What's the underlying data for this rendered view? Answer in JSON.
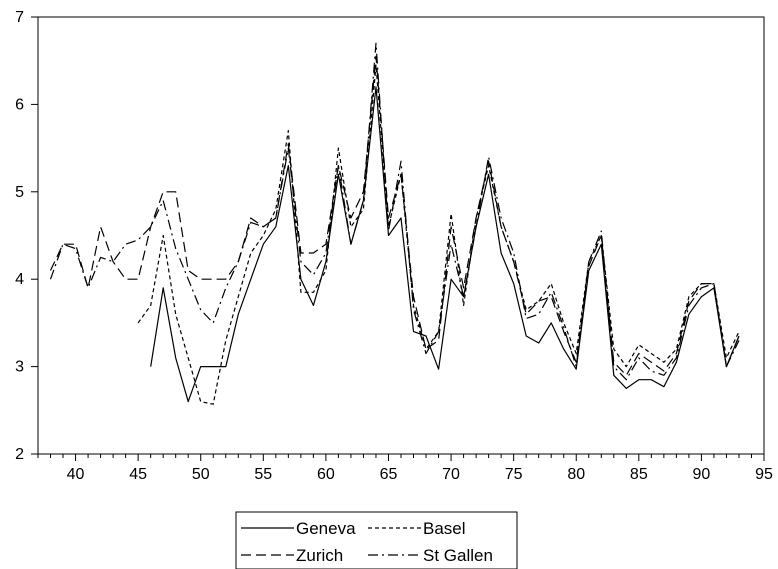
{
  "chart_data": {
    "type": "line",
    "title": "",
    "xlabel": "",
    "ylabel": "",
    "xlim": [
      37,
      95
    ],
    "ylim": [
      2,
      7
    ],
    "xticks": [
      40,
      45,
      50,
      55,
      60,
      65,
      70,
      75,
      80,
      85,
      90,
      95
    ],
    "yticks": [
      2,
      3,
      4,
      5,
      6,
      7
    ],
    "xtick_labels": [
      "40",
      "45",
      "50",
      "55",
      "60",
      "65",
      "70",
      "75",
      "80",
      "85",
      "90",
      "95"
    ],
    "ytick_labels": [
      "2",
      "3",
      "4",
      "5",
      "6",
      "7"
    ],
    "grid": false,
    "legend_position": "bottom-center",
    "series": [
      {
        "name": "Geneva",
        "style": "solid",
        "x": [
          46,
          47,
          48,
          49,
          50,
          51,
          52,
          53,
          54,
          55,
          56,
          57,
          58,
          59,
          60,
          61,
          62,
          63,
          64,
          65,
          66,
          67,
          68,
          69,
          70,
          71,
          72,
          73,
          74,
          75,
          76,
          77,
          78,
          79,
          80,
          81,
          82,
          83,
          84,
          85,
          86,
          87,
          88,
          89,
          90,
          91,
          92,
          93
        ],
        "y": [
          3.0,
          3.9,
          3.1,
          2.6,
          3.0,
          3.0,
          3.0,
          3.6,
          4.0,
          4.4,
          4.6,
          5.3,
          4.0,
          3.7,
          4.2,
          5.2,
          4.4,
          4.9,
          6.2,
          4.5,
          4.7,
          3.4,
          3.35,
          2.97,
          4.0,
          3.8,
          4.6,
          5.2,
          4.3,
          3.95,
          3.35,
          3.27,
          3.5,
          3.2,
          2.97,
          4.1,
          4.4,
          2.9,
          2.75,
          2.85,
          2.85,
          2.77,
          3.05,
          3.6,
          3.8,
          3.9,
          3.0,
          3.35
        ]
      },
      {
        "name": "Basel",
        "style": "short-dash",
        "x": [
          45,
          46,
          47,
          48,
          49,
          50,
          51,
          52,
          53,
          54,
          55,
          56,
          57,
          58,
          59,
          60,
          61,
          62,
          63,
          64,
          65,
          66,
          67,
          68,
          69,
          70,
          71,
          72,
          73,
          74,
          75,
          76,
          77,
          78,
          79,
          80,
          81,
          82,
          83,
          84,
          85,
          86,
          87,
          88,
          89,
          90,
          91,
          92,
          93
        ],
        "y": [
          3.5,
          3.7,
          4.5,
          3.6,
          3.1,
          2.6,
          2.57,
          3.3,
          3.8,
          4.3,
          4.5,
          4.8,
          5.7,
          3.85,
          3.85,
          4.1,
          5.5,
          4.6,
          4.8,
          6.45,
          4.6,
          5.2,
          3.7,
          3.2,
          3.4,
          4.75,
          3.7,
          4.7,
          5.3,
          4.6,
          4.2,
          3.65,
          3.75,
          3.95,
          3.5,
          3.15,
          4.2,
          4.5,
          3.2,
          3.0,
          3.25,
          3.15,
          3.05,
          3.2,
          3.8,
          3.95,
          3.95,
          3.1,
          3.4
        ]
      },
      {
        "name": "Zurich",
        "style": "long-dash",
        "x": [
          38,
          39,
          40,
          41,
          42,
          43,
          44,
          45,
          46,
          47,
          48,
          49,
          50,
          51,
          52,
          53,
          54,
          55,
          56,
          57,
          58,
          59,
          60,
          61,
          62,
          63,
          64,
          65,
          66,
          67,
          68,
          69,
          70,
          71,
          72,
          73,
          74,
          75,
          76,
          77,
          78,
          79,
          80,
          81,
          82,
          83,
          84,
          85,
          86,
          87,
          88,
          89,
          90,
          91,
          92,
          93
        ],
        "y": [
          4.1,
          4.4,
          4.4,
          3.9,
          4.6,
          4.2,
          4.0,
          4.0,
          4.6,
          5.0,
          5.0,
          4.1,
          4.0,
          4.0,
          4.0,
          4.2,
          4.7,
          4.6,
          4.7,
          5.55,
          4.3,
          4.3,
          4.4,
          5.3,
          4.7,
          5.0,
          6.55,
          4.7,
          5.2,
          3.8,
          3.2,
          3.3,
          4.6,
          3.9,
          4.7,
          5.35,
          4.6,
          4.2,
          3.6,
          3.75,
          3.8,
          3.4,
          3.05,
          4.15,
          4.5,
          3.05,
          2.9,
          3.15,
          3.05,
          2.95,
          3.15,
          3.75,
          3.95,
          3.95,
          3.0,
          3.35
        ]
      },
      {
        "name": "St Gallen",
        "style": "dash-dot",
        "x": [
          38,
          39,
          40,
          41,
          42,
          43,
          44,
          45,
          46,
          47,
          48,
          49,
          50,
          51,
          52,
          53,
          54,
          55,
          56,
          57,
          58,
          59,
          60,
          61,
          62,
          63,
          64,
          65,
          66,
          67,
          68,
          69,
          70,
          71,
          72,
          73,
          74,
          75,
          76,
          77,
          78,
          79,
          80,
          81,
          82,
          83,
          84,
          85,
          86,
          87,
          88,
          89,
          90,
          91,
          92,
          93
        ],
        "y": [
          4.0,
          4.4,
          4.35,
          3.9,
          4.25,
          4.2,
          4.4,
          4.45,
          4.6,
          4.9,
          4.35,
          4.0,
          3.65,
          3.5,
          3.9,
          4.2,
          4.65,
          4.6,
          4.7,
          5.5,
          4.2,
          4.05,
          4.3,
          5.3,
          4.4,
          4.9,
          6.7,
          4.55,
          5.35,
          3.65,
          3.15,
          3.4,
          4.4,
          3.8,
          4.6,
          5.4,
          4.7,
          4.3,
          3.55,
          3.6,
          3.85,
          3.45,
          3.0,
          4.2,
          4.55,
          3.0,
          2.85,
          3.1,
          2.95,
          2.9,
          3.1,
          3.7,
          3.9,
          3.95,
          3.0,
          3.3
        ]
      }
    ]
  }
}
